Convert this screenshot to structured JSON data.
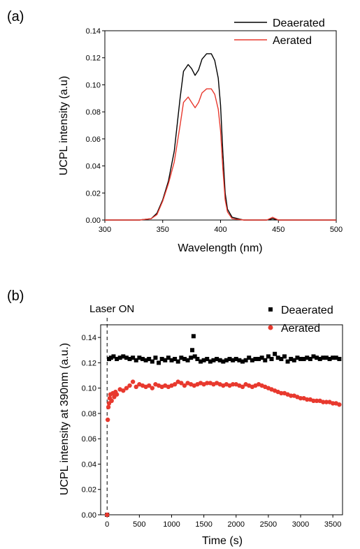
{
  "chart_data": [
    {
      "panel_label": "(a)",
      "type": "line",
      "xlabel": "Wavelength (nm)",
      "ylabel": "UCPL intensity (a.u)",
      "xlim": [
        300,
        500
      ],
      "ylim": [
        0,
        0.14
      ],
      "xticks": [
        "300",
        "350",
        "400",
        "450",
        "500"
      ],
      "yticks": [
        "0.00",
        "0.02",
        "0.04",
        "0.06",
        "0.08",
        "0.10",
        "0.12",
        "0.14"
      ],
      "legend_position": "top-right",
      "series": [
        {
          "name": "Deaerated",
          "color": "#000000",
          "x": [
            300,
            330,
            340,
            345,
            350,
            355,
            360,
            365,
            368,
            372,
            375,
            378,
            381,
            384,
            388,
            392,
            395,
            398,
            400,
            402,
            404,
            406,
            410,
            420,
            440,
            445,
            450,
            470,
            500
          ],
          "y": [
            0.0,
            0.0,
            0.001,
            0.005,
            0.015,
            0.029,
            0.051,
            0.09,
            0.11,
            0.115,
            0.112,
            0.107,
            0.111,
            0.119,
            0.123,
            0.123,
            0.118,
            0.105,
            0.085,
            0.05,
            0.02,
            0.008,
            0.002,
            0.0,
            0.0,
            0.001,
            0.0,
            0.0,
            0.0
          ]
        },
        {
          "name": "Aerated",
          "color": "#e8392e",
          "x": [
            300,
            330,
            340,
            345,
            350,
            355,
            360,
            365,
            368,
            372,
            375,
            378,
            381,
            384,
            388,
            392,
            395,
            398,
            400,
            402,
            404,
            406,
            410,
            420,
            440,
            445,
            450,
            470,
            500
          ],
          "y": [
            0.0,
            0.0,
            0.001,
            0.004,
            0.014,
            0.027,
            0.043,
            0.07,
            0.087,
            0.091,
            0.087,
            0.083,
            0.087,
            0.094,
            0.097,
            0.097,
            0.093,
            0.082,
            0.066,
            0.038,
            0.015,
            0.006,
            0.001,
            0.0,
            0.0,
            0.002,
            0.0,
            0.0,
            0.0
          ]
        }
      ]
    },
    {
      "panel_label": "(b)",
      "type": "scatter",
      "xlabel": "Time (s)",
      "ylabel": "UCPL intensity at 390nm (a.u.)",
      "xlim": [
        -100,
        3650
      ],
      "ylim": [
        0,
        0.15
      ],
      "xticks": [
        "0",
        "500",
        "1000",
        "1500",
        "2000",
        "2500",
        "3000",
        "3500"
      ],
      "yticks": [
        "0.00",
        "0.02",
        "0.04",
        "0.06",
        "0.08",
        "0.10",
        "0.12",
        "0.14"
      ],
      "annotation": "Laser ON",
      "annotation_x": 0,
      "legend_position": "top-right",
      "series": [
        {
          "name": "Deaerated",
          "color": "#000000",
          "marker": "square",
          "x": [
            0,
            30,
            60,
            100,
            150,
            200,
            250,
            300,
            350,
            400,
            450,
            500,
            550,
            600,
            650,
            700,
            750,
            800,
            850,
            900,
            950,
            1000,
            1050,
            1100,
            1150,
            1200,
            1250,
            1300,
            1320,
            1340,
            1360,
            1400,
            1450,
            1500,
            1550,
            1600,
            1650,
            1700,
            1750,
            1800,
            1850,
            1900,
            1950,
            2000,
            2050,
            2100,
            2150,
            2200,
            2250,
            2300,
            2350,
            2400,
            2450,
            2500,
            2550,
            2600,
            2650,
            2700,
            2750,
            2800,
            2850,
            2900,
            2950,
            3000,
            3050,
            3100,
            3150,
            3200,
            3250,
            3300,
            3350,
            3400,
            3450,
            3500,
            3550,
            3600
          ],
          "y": [
            0.0,
            0.123,
            0.124,
            0.125,
            0.123,
            0.124,
            0.125,
            0.124,
            0.123,
            0.124,
            0.122,
            0.124,
            0.123,
            0.122,
            0.123,
            0.121,
            0.124,
            0.12,
            0.123,
            0.122,
            0.124,
            0.122,
            0.123,
            0.121,
            0.124,
            0.123,
            0.122,
            0.124,
            0.13,
            0.141,
            0.125,
            0.123,
            0.121,
            0.122,
            0.123,
            0.121,
            0.122,
            0.123,
            0.122,
            0.121,
            0.122,
            0.123,
            0.122,
            0.123,
            0.122,
            0.121,
            0.122,
            0.124,
            0.122,
            0.123,
            0.123,
            0.124,
            0.122,
            0.125,
            0.123,
            0.127,
            0.124,
            0.123,
            0.125,
            0.121,
            0.123,
            0.122,
            0.124,
            0.123,
            0.123,
            0.124,
            0.123,
            0.125,
            0.124,
            0.123,
            0.124,
            0.124,
            0.123,
            0.124,
            0.124,
            0.123
          ]
        },
        {
          "name": "Aerated",
          "color": "#e8392e",
          "marker": "circle",
          "x": [
            0,
            10,
            20,
            30,
            40,
            50,
            70,
            90,
            110,
            130,
            150,
            200,
            250,
            300,
            350,
            400,
            450,
            500,
            550,
            600,
            650,
            700,
            750,
            800,
            850,
            900,
            950,
            1000,
            1050,
            1100,
            1150,
            1200,
            1250,
            1300,
            1350,
            1400,
            1450,
            1500,
            1550,
            1600,
            1650,
            1700,
            1750,
            1800,
            1850,
            1900,
            1950,
            2000,
            2050,
            2100,
            2150,
            2200,
            2250,
            2300,
            2350,
            2400,
            2450,
            2500,
            2550,
            2600,
            2650,
            2700,
            2750,
            2800,
            2850,
            2900,
            2950,
            3000,
            3050,
            3100,
            3150,
            3200,
            3250,
            3300,
            3350,
            3400,
            3450,
            3500,
            3550,
            3600
          ],
          "y": [
            0.0,
            0.075,
            0.085,
            0.088,
            0.092,
            0.095,
            0.09,
            0.096,
            0.093,
            0.097,
            0.095,
            0.099,
            0.098,
            0.1,
            0.102,
            0.105,
            0.101,
            0.103,
            0.102,
            0.101,
            0.102,
            0.1,
            0.103,
            0.102,
            0.101,
            0.102,
            0.101,
            0.102,
            0.103,
            0.105,
            0.104,
            0.102,
            0.104,
            0.103,
            0.102,
            0.103,
            0.104,
            0.103,
            0.104,
            0.104,
            0.103,
            0.104,
            0.103,
            0.102,
            0.103,
            0.102,
            0.103,
            0.103,
            0.102,
            0.101,
            0.103,
            0.102,
            0.101,
            0.102,
            0.103,
            0.102,
            0.101,
            0.1,
            0.099,
            0.098,
            0.097,
            0.096,
            0.096,
            0.095,
            0.094,
            0.094,
            0.093,
            0.092,
            0.092,
            0.091,
            0.091,
            0.09,
            0.09,
            0.09,
            0.089,
            0.089,
            0.089,
            0.088,
            0.088,
            0.087
          ]
        }
      ]
    }
  ]
}
